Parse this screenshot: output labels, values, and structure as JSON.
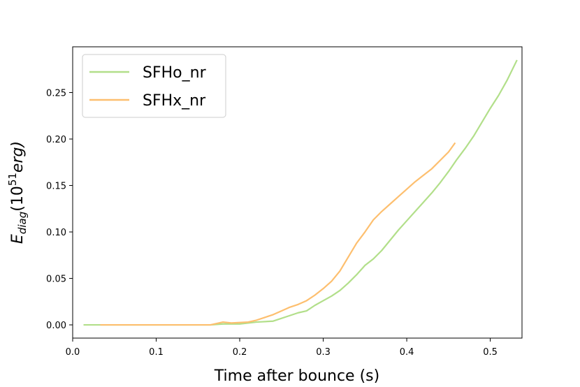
{
  "chart_data": {
    "type": "line",
    "xlabel": "Time after bounce (s)",
    "ylabel": {
      "symbol": "E",
      "subscript": "diag",
      "unit_open": "(10",
      "superscript": "51",
      "unit": "erg)"
    },
    "xlim": [
      0,
      0.538
    ],
    "ylim": [
      -0.01425,
      0.29925
    ],
    "xticks": [
      {
        "value": 0,
        "label": "0.0"
      },
      0.1,
      0.2,
      0.3,
      0.4,
      0.5
    ],
    "yticks": [
      {
        "value": 0,
        "label": "0.00"
      },
      {
        "value": 0.05,
        "label": "0.05"
      },
      {
        "value": 0.1,
        "label": "0.10"
      },
      {
        "value": 0.15,
        "label": "0.15"
      },
      {
        "value": 0.2,
        "label": "0.20"
      },
      {
        "value": 0.25,
        "label": "0.25"
      }
    ],
    "grid": false,
    "legend": "upper left",
    "series": [
      {
        "name": "SFHo_nr",
        "color": "#b2df8a",
        "x": [
          0.013,
          0.1,
          0.165,
          0.18,
          0.2,
          0.22,
          0.24,
          0.26,
          0.27,
          0.28,
          0.29,
          0.3,
          0.31,
          0.32,
          0.33,
          0.34,
          0.35,
          0.36,
          0.37,
          0.38,
          0.39,
          0.4,
          0.41,
          0.42,
          0.43,
          0.44,
          0.45,
          0.46,
          0.47,
          0.48,
          0.49,
          0.5,
          0.51,
          0.52,
          0.532
        ],
        "values": [
          0,
          0,
          0,
          0.001,
          0.001,
          0.003,
          0.004,
          0.01,
          0.013,
          0.015,
          0.021,
          0.026,
          0.031,
          0.037,
          0.045,
          0.054,
          0.064,
          0.071,
          0.08,
          0.091,
          0.102,
          0.112,
          0.122,
          0.132,
          0.142,
          0.153,
          0.165,
          0.178,
          0.19,
          0.203,
          0.218,
          0.233,
          0.247,
          0.263,
          0.285
        ]
      },
      {
        "name": "SFHx_nr",
        "color": "#fdbf6f",
        "x": [
          0.033,
          0.1,
          0.165,
          0.18,
          0.19,
          0.21,
          0.22,
          0.23,
          0.24,
          0.25,
          0.26,
          0.27,
          0.28,
          0.29,
          0.3,
          0.31,
          0.32,
          0.33,
          0.34,
          0.35,
          0.36,
          0.37,
          0.38,
          0.39,
          0.4,
          0.41,
          0.42,
          0.43,
          0.44,
          0.45,
          0.458
        ],
        "values": [
          0,
          0,
          0,
          0.003,
          0.002,
          0.003,
          0.005,
          0.008,
          0.011,
          0.015,
          0.019,
          0.022,
          0.026,
          0.032,
          0.039,
          0.047,
          0.058,
          0.073,
          0.088,
          0.1,
          0.113,
          0.122,
          0.13,
          0.138,
          0.146,
          0.154,
          0.161,
          0.168,
          0.177,
          0.186,
          0.196
        ]
      }
    ]
  }
}
